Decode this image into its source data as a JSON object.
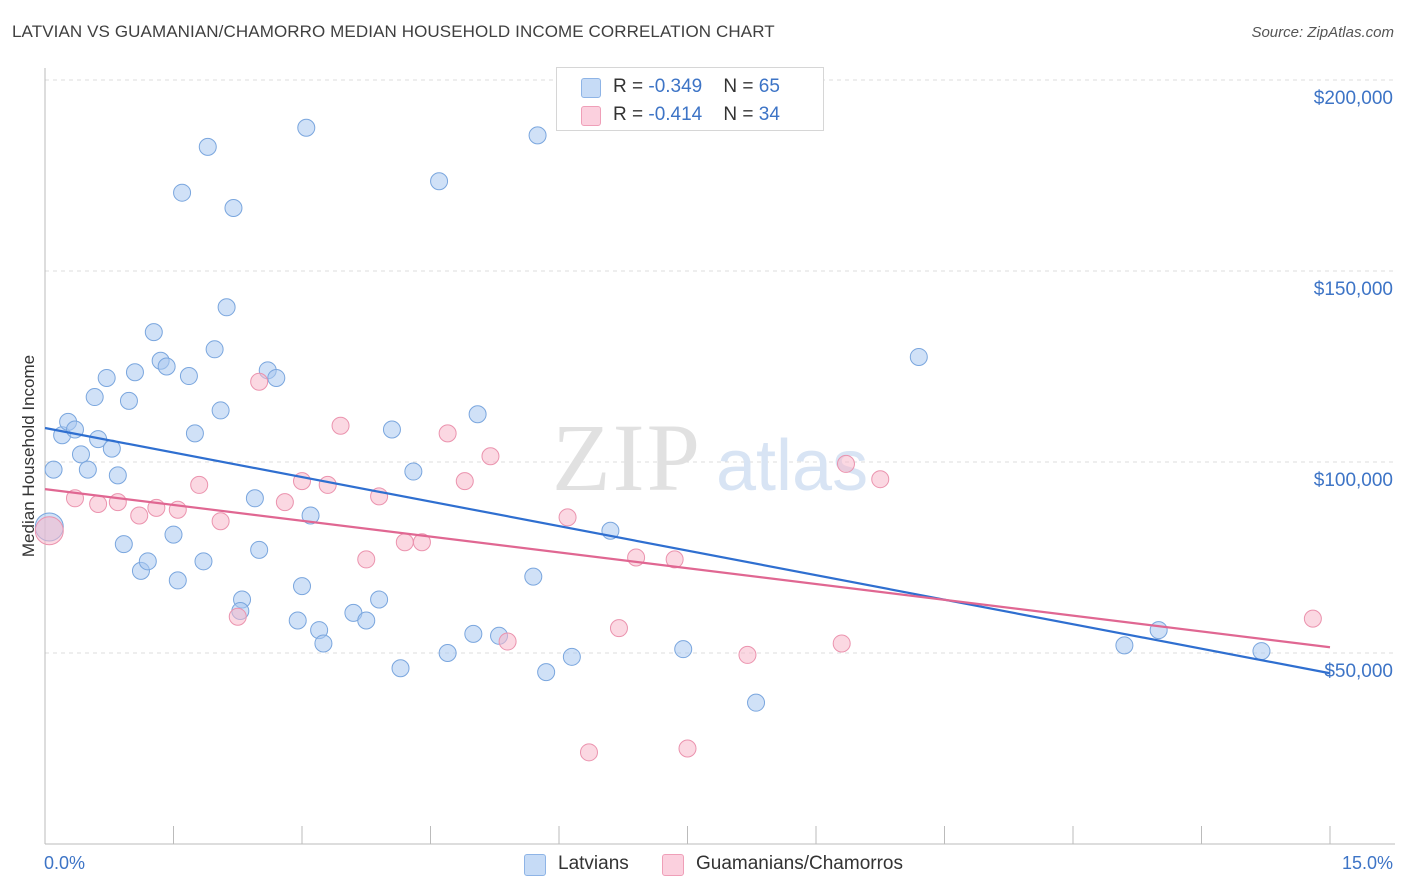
{
  "header": {
    "title": "LATVIAN VS GUAMANIAN/CHAMORRO MEDIAN HOUSEHOLD INCOME CORRELATION CHART",
    "source": "Source: ZipAtlas.com"
  },
  "watermark": {
    "zip": "ZIP",
    "atlas": "atlas"
  },
  "legend": {
    "rows": [
      {
        "r_label": "R = ",
        "r_value": "-0.349",
        "n_label": "N = ",
        "n_value": "65",
        "color": "#aac8f0"
      },
      {
        "r_label": "R = ",
        "r_value": "-0.414",
        "n_label": "N = ",
        "n_value": "34",
        "color": "#f7b8cb"
      }
    ]
  },
  "bottom_legend": [
    {
      "label": "Latvians",
      "color": "#aac8f0"
    },
    {
      "label": "Guamanians/Chamorros",
      "color": "#f7b8cb"
    }
  ],
  "chart_data": {
    "type": "scatter",
    "title": "LATVIAN VS GUAMANIAN/CHAMORRO MEDIAN HOUSEHOLD INCOME CORRELATION CHART",
    "xlabel": "",
    "ylabel": "Median Household Income",
    "xlim": [
      0,
      15
    ],
    "ylim": [
      0,
      205000
    ],
    "x_tick_labels": [
      "0.0%",
      "15.0%"
    ],
    "y_ticks": [
      {
        "value": 50000,
        "label": "$50,000"
      },
      {
        "value": 100000,
        "label": "$100,000"
      },
      {
        "value": 150000,
        "label": "$150,000"
      },
      {
        "value": 200000,
        "label": "$200,000"
      }
    ],
    "grid": "horizontal dashed",
    "legend_position": "top-center",
    "series": [
      {
        "name": "Latvians",
        "color": "#aac8f0",
        "stroke": "#7aa6de",
        "line_color": "#2f6fd0",
        "trend": {
          "x": [
            0,
            15
          ],
          "y": [
            108900,
            44700
          ]
        },
        "points": [
          [
            0.05,
            83000
          ],
          [
            0.1,
            98000
          ],
          [
            0.2,
            107000
          ],
          [
            0.27,
            110500
          ],
          [
            0.35,
            108500
          ],
          [
            0.42,
            102000
          ],
          [
            0.5,
            98000
          ],
          [
            0.58,
            117000
          ],
          [
            0.62,
            106000
          ],
          [
            0.72,
            122000
          ],
          [
            0.78,
            103500
          ],
          [
            0.85,
            96500
          ],
          [
            0.92,
            78500
          ],
          [
            0.98,
            116000
          ],
          [
            1.05,
            123500
          ],
          [
            1.12,
            71500
          ],
          [
            1.2,
            74000
          ],
          [
            1.27,
            134000
          ],
          [
            1.35,
            126500
          ],
          [
            1.42,
            125000
          ],
          [
            1.5,
            81000
          ],
          [
            1.55,
            69000
          ],
          [
            1.6,
            170500
          ],
          [
            1.68,
            122500
          ],
          [
            1.75,
            107500
          ],
          [
            1.85,
            74000
          ],
          [
            1.9,
            182500
          ],
          [
            1.98,
            129500
          ],
          [
            2.05,
            113500
          ],
          [
            2.12,
            140500
          ],
          [
            2.2,
            166500
          ],
          [
            2.3,
            64000
          ],
          [
            2.28,
            61000
          ],
          [
            2.45,
            90500
          ],
          [
            2.5,
            77000
          ],
          [
            2.6,
            124000
          ],
          [
            2.7,
            122000
          ],
          [
            2.95,
            58500
          ],
          [
            3.0,
            67500
          ],
          [
            3.05,
            187500
          ],
          [
            3.1,
            86000
          ],
          [
            3.2,
            56000
          ],
          [
            3.25,
            52500
          ],
          [
            3.6,
            60500
          ],
          [
            3.75,
            58500
          ],
          [
            3.9,
            64000
          ],
          [
            4.05,
            108500
          ],
          [
            4.15,
            46000
          ],
          [
            4.3,
            97500
          ],
          [
            4.6,
            173500
          ],
          [
            4.7,
            50000
          ],
          [
            5.0,
            55000
          ],
          [
            5.05,
            112500
          ],
          [
            5.3,
            54500
          ],
          [
            5.7,
            70000
          ],
          [
            5.75,
            185500
          ],
          [
            5.85,
            45000
          ],
          [
            6.15,
            49000
          ],
          [
            6.6,
            82000
          ],
          [
            7.45,
            51000
          ],
          [
            8.3,
            37000
          ],
          [
            10.2,
            127500
          ],
          [
            12.6,
            52000
          ],
          [
            13.0,
            56000
          ],
          [
            14.2,
            50500
          ]
        ]
      },
      {
        "name": "Guamanians/Chamorros",
        "color": "#f7b8cb",
        "stroke": "#eb93ae",
        "line_color": "#e06792",
        "trend": {
          "x": [
            0,
            15
          ],
          "y": [
            92900,
            51500
          ]
        },
        "points": [
          [
            0.05,
            82000
          ],
          [
            0.35,
            90500
          ],
          [
            0.62,
            89000
          ],
          [
            0.85,
            89500
          ],
          [
            1.1,
            86000
          ],
          [
            1.3,
            88000
          ],
          [
            1.55,
            87500
          ],
          [
            1.8,
            94000
          ],
          [
            2.05,
            84500
          ],
          [
            2.25,
            59500
          ],
          [
            2.5,
            121000
          ],
          [
            2.8,
            89500
          ],
          [
            3.0,
            95000
          ],
          [
            3.3,
            94000
          ],
          [
            3.45,
            109500
          ],
          [
            3.75,
            74500
          ],
          [
            3.9,
            91000
          ],
          [
            4.2,
            79000
          ],
          [
            4.4,
            79000
          ],
          [
            4.7,
            107500
          ],
          [
            4.9,
            95000
          ],
          [
            5.2,
            101500
          ],
          [
            5.4,
            53000
          ],
          [
            6.1,
            85500
          ],
          [
            6.35,
            24000
          ],
          [
            6.7,
            56500
          ],
          [
            6.9,
            75000
          ],
          [
            7.35,
            74500
          ],
          [
            7.5,
            25000
          ],
          [
            8.2,
            49500
          ],
          [
            9.3,
            52500
          ],
          [
            9.35,
            99500
          ],
          [
            9.75,
            95500
          ],
          [
            14.8,
            59000
          ]
        ]
      }
    ]
  }
}
